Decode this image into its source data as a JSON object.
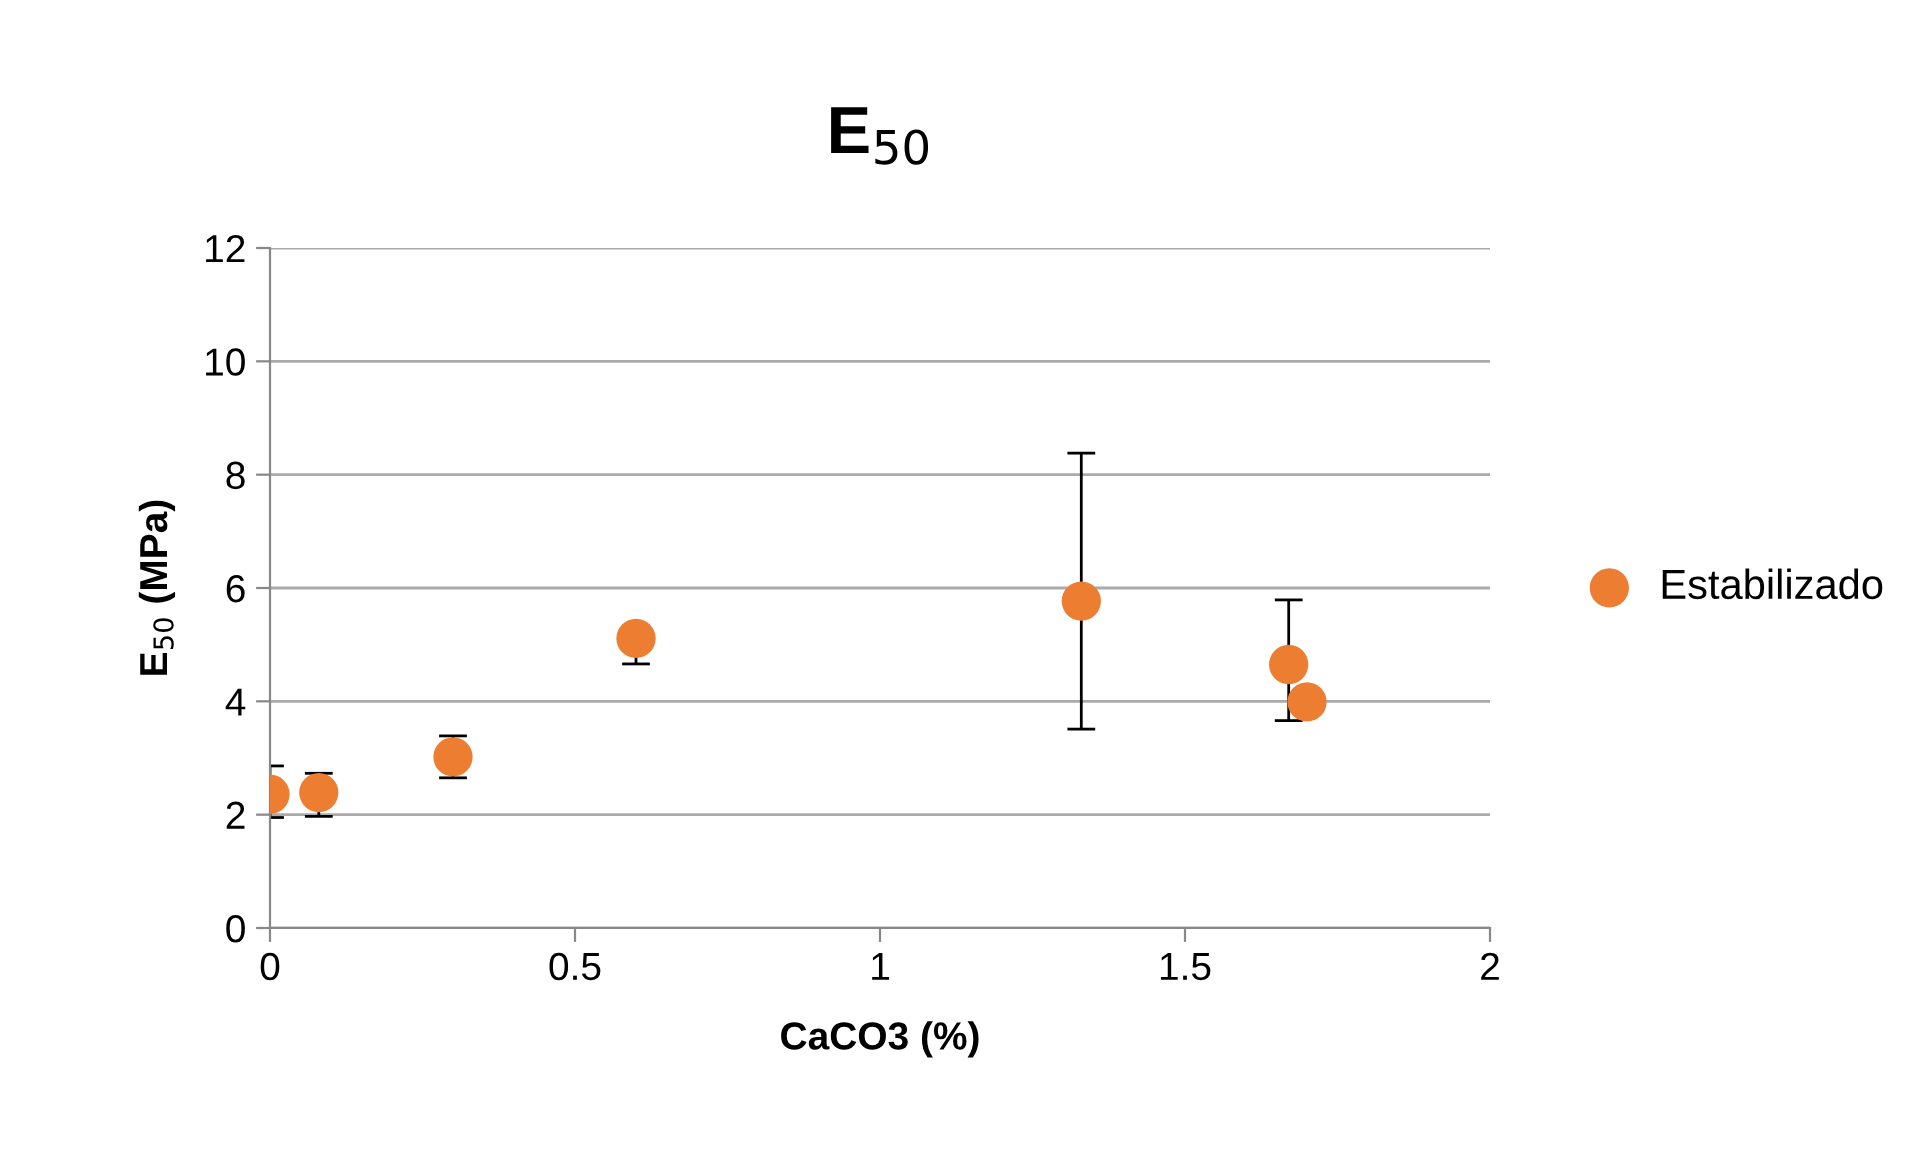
{
  "chart_data": {
    "type": "scatter",
    "title": "E$_{50}$",
    "xlabel": "CaCO3 (%)",
    "ylabel": "E$_{50}$ (MPa)",
    "x": [
      0,
      0.08,
      0.3,
      0.6,
      1.33,
      1.67,
      1.7
    ],
    "series": [
      {
        "name": "Estabilizado",
        "color": "#ed7d31",
        "values": [
          2.36,
          2.39,
          3.02,
          5.11,
          5.77,
          4.65,
          3.99
        ],
        "errors": [
          [
            1.95,
            2.86
          ],
          [
            1.97,
            2.73
          ],
          [
            2.65,
            3.39
          ],
          [
            4.66,
            5.11
          ],
          [
            3.51,
            8.38
          ],
          [
            3.66,
            5.79
          ],
          null
        ]
      }
    ],
    "xlim": [
      0,
      2
    ],
    "xticks": [
      0,
      0.5,
      1,
      1.5,
      2
    ],
    "ylim": [
      0,
      12
    ],
    "yticks": [
      0,
      2,
      4,
      6,
      8,
      10,
      12
    ],
    "grid": "y",
    "legend": "right",
    "marker": "circle"
  }
}
